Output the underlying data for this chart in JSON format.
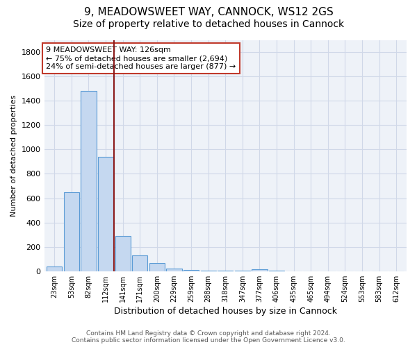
{
  "title1": "9, MEADOWSWEET WAY, CANNOCK, WS12 2GS",
  "title2": "Size of property relative to detached houses in Cannock",
  "xlabel": "Distribution of detached houses by size in Cannock",
  "ylabel": "Number of detached properties",
  "categories": [
    "23sqm",
    "53sqm",
    "82sqm",
    "112sqm",
    "141sqm",
    "171sqm",
    "200sqm",
    "229sqm",
    "259sqm",
    "288sqm",
    "318sqm",
    "347sqm",
    "377sqm",
    "406sqm",
    "435sqm",
    "465sqm",
    "494sqm",
    "524sqm",
    "553sqm",
    "583sqm",
    "612sqm"
  ],
  "values": [
    40,
    650,
    1480,
    940,
    290,
    130,
    65,
    22,
    10,
    5,
    3,
    2,
    15,
    2,
    1,
    1,
    0,
    0,
    0,
    0,
    0
  ],
  "bar_color": "#c5d8f0",
  "bar_edge_color": "#5b9bd5",
  "red_line_x": 3.48,
  "red_line_color": "#8b1a1a",
  "annotation_line1": "9 MEADOWSWEET WAY: 126sqm",
  "annotation_line2": "← 75% of detached houses are smaller (2,694)",
  "annotation_line3": "24% of semi-detached houses are larger (877) →",
  "annotation_box_color": "#ffffff",
  "annotation_border_color": "#c0392b",
  "ylim": [
    0,
    1900
  ],
  "yticks": [
    0,
    200,
    400,
    600,
    800,
    1000,
    1200,
    1400,
    1600,
    1800
  ],
  "footer_line1": "Contains HM Land Registry data © Crown copyright and database right 2024.",
  "footer_line2": "Contains public sector information licensed under the Open Government Licence v3.0.",
  "bg_color": "#ffffff",
  "plot_bg_color": "#eef2f8",
  "grid_color": "#d0d8e8",
  "title1_fontsize": 11,
  "title2_fontsize": 10
}
